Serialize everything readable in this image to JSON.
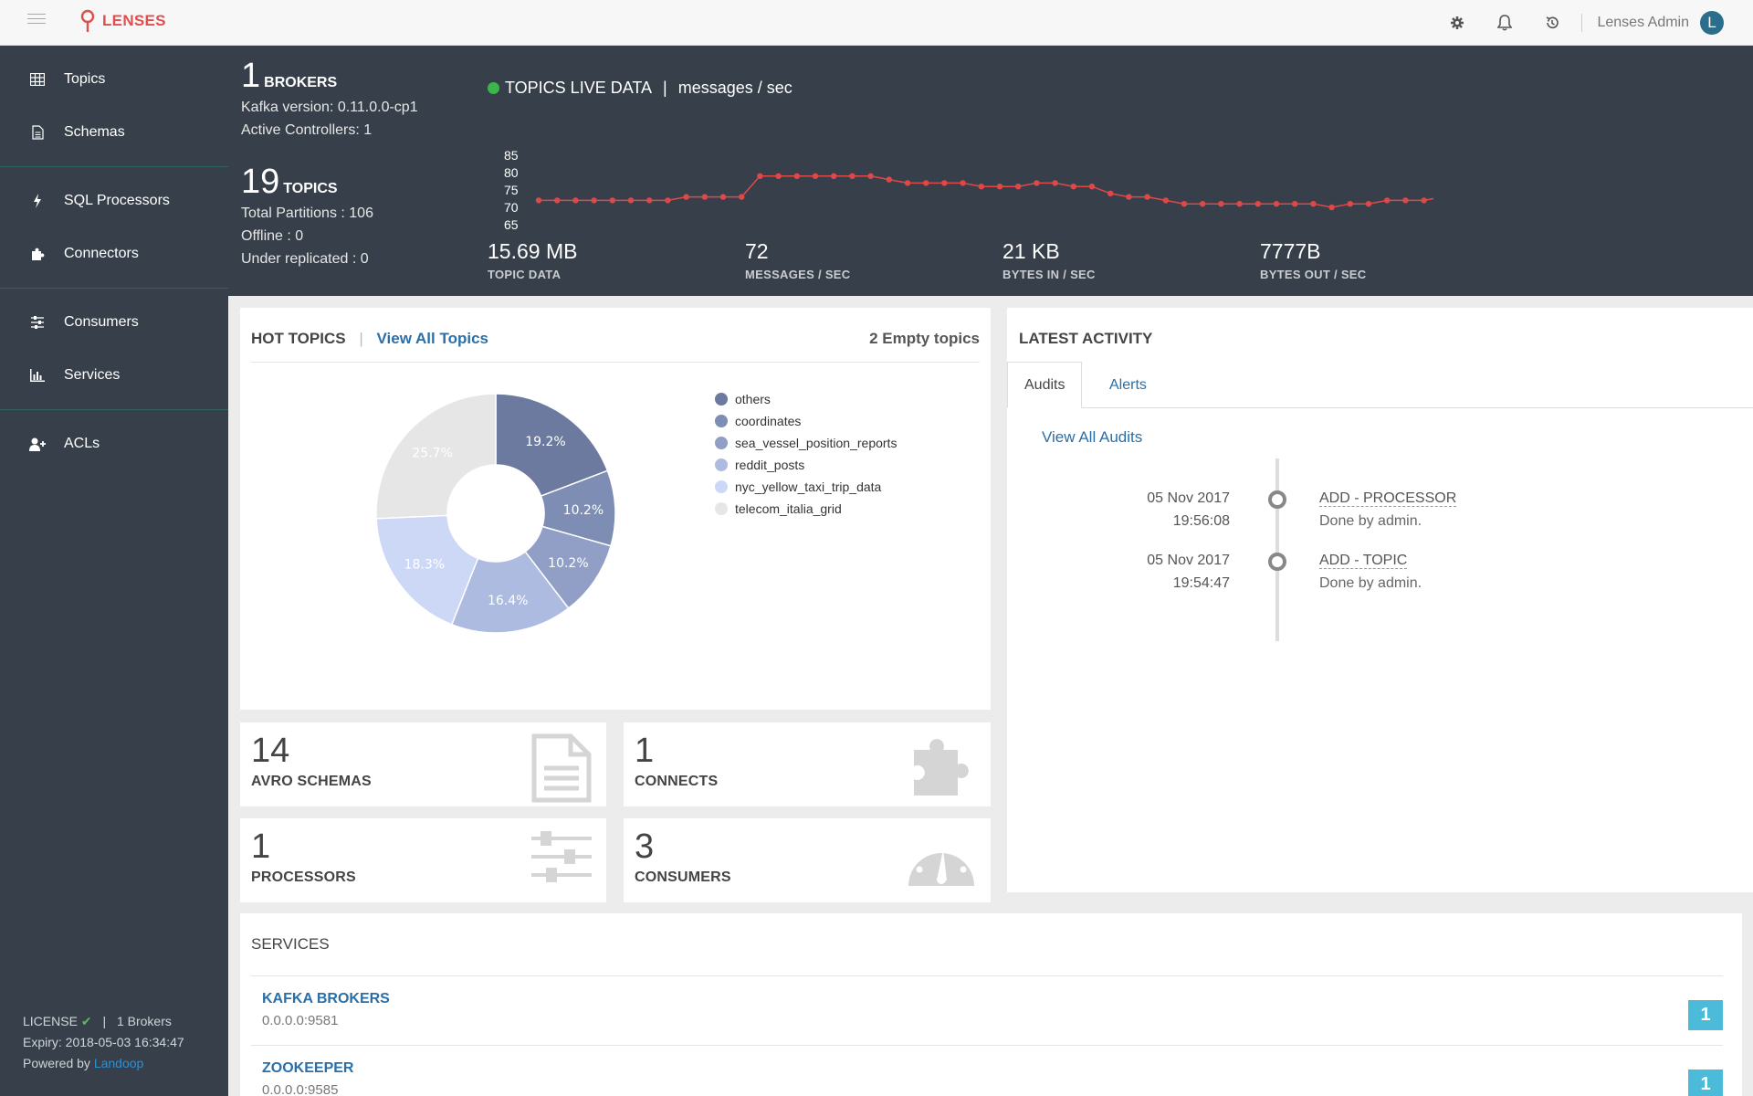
{
  "app": {
    "name": "LENSES"
  },
  "topbar": {
    "user": "Lenses Admin",
    "avatar_letter": "L"
  },
  "sidebar": {
    "groups": [
      [
        {
          "label": "Topics",
          "icon": "table-icon"
        },
        {
          "label": "Schemas",
          "icon": "document-icon"
        }
      ],
      [
        {
          "label": "SQL Processors",
          "icon": "bolt-icon"
        },
        {
          "label": "Connectors",
          "icon": "puzzle-icon"
        }
      ],
      [
        {
          "label": "Consumers",
          "icon": "sliders-icon"
        },
        {
          "label": "Services",
          "icon": "bar-chart-icon"
        }
      ],
      [
        {
          "label": "ACLs",
          "icon": "add-user-icon"
        }
      ]
    ],
    "footer": {
      "license": "LICENSE",
      "brokers": "1 Brokers",
      "expiry": "Expiry: 2018-05-03 16:34:47",
      "powered_by": "Powered by",
      "powered_link": "Landoop"
    }
  },
  "stats": {
    "brokers_count": "1",
    "brokers_label": "BROKERS",
    "kafka_version": "Kafka version: 0.11.0.0-cp1",
    "active_controllers": "Active Controllers: 1",
    "topics_count": "19",
    "topics_label": "TOPICS",
    "total_partitions": "Total Partitions : 106",
    "offline": "Offline : 0",
    "under_replicated": "Under replicated : 0",
    "live_title": "TOPICS LIVE DATA",
    "live_unit": "messages / sec",
    "metrics": [
      {
        "value": "15.69 MB",
        "label": "TOPIC DATA"
      },
      {
        "value": "72",
        "label": "MESSAGES / SEC"
      },
      {
        "value": "21 KB",
        "label": "BYTES IN / SEC"
      },
      {
        "value": "7777B",
        "label": "BYTES OUT / SEC"
      }
    ]
  },
  "chart_data": [
    {
      "type": "line",
      "title": "",
      "xlabel": "",
      "ylabel": "",
      "ylim": [
        65,
        85
      ],
      "yticks": [
        "85",
        "80",
        "75",
        "70",
        "65"
      ],
      "grid": false,
      "line_color": "#e04848",
      "series": [
        {
          "values": [
            72,
            72,
            72,
            72,
            72,
            72,
            72,
            72,
            73,
            73,
            73,
            73,
            79,
            79,
            79,
            79,
            79,
            79,
            79,
            78,
            77,
            77,
            77,
            77,
            76,
            76,
            76,
            77,
            77,
            76,
            76,
            74,
            73,
            73,
            72,
            71,
            71,
            71,
            71,
            71,
            71,
            71,
            71,
            70,
            71,
            71,
            72,
            72,
            72,
            73
          ]
        }
      ]
    },
    {
      "type": "pie",
      "title": "",
      "donut": true,
      "slices": [
        {
          "label": "others",
          "value": 19.2,
          "text": "19.2%",
          "color": "#6b7a9e"
        },
        {
          "label": "coordinates",
          "value": 10.2,
          "text": "10.2%",
          "color": "#7e8db4"
        },
        {
          "label": "sea_vessel_position_reports",
          "value": 10.2,
          "text": "10.2%",
          "color": "#919fc6"
        },
        {
          "label": "reddit_posts",
          "value": 16.4,
          "text": "16.4%",
          "color": "#aebbe0"
        },
        {
          "label": "nyc_yellow_taxi_trip_data",
          "value": 18.3,
          "text": "18.3%",
          "color": "#cdd8f6"
        },
        {
          "label": "telecom_italia_grid",
          "value": 25.7,
          "text": "25.7%",
          "color": "#e6e6e6"
        }
      ]
    }
  ],
  "hot_topics": {
    "title": "HOT TOPICS",
    "view_all": "View All Topics",
    "empty": "2 Empty topics"
  },
  "tiles": [
    {
      "value": "14",
      "label": "AVRO SCHEMAS",
      "icon": "document-icon"
    },
    {
      "value": "1",
      "label": "CONNECTS",
      "icon": "puzzle-icon"
    },
    {
      "value": "1",
      "label": "PROCESSORS",
      "icon": "sliders-icon"
    },
    {
      "value": "3",
      "label": "CONSUMERS",
      "icon": "dashboard-icon"
    }
  ],
  "activity": {
    "title": "LATEST ACTIVITY",
    "tabs": [
      "Audits",
      "Alerts"
    ],
    "view_all": "View All Audits",
    "entries": [
      {
        "date": "05 Nov 2017",
        "time": "19:56:08",
        "action": "ADD - PROCESSOR",
        "by": "Done by admin."
      },
      {
        "date": "05 Nov 2017",
        "time": "19:54:47",
        "action": "ADD - TOPIC",
        "by": "Done by admin."
      }
    ]
  },
  "services": {
    "title": "SERVICES",
    "items": [
      {
        "name": "KAFKA BROKERS",
        "address": "0.0.0.0:9581",
        "count": "1"
      },
      {
        "name": "ZOOKEEPER",
        "address": "0.0.0.0:9585",
        "count": "1"
      }
    ]
  },
  "colors": {
    "accent": "#2a6fa8",
    "brand": "#e04e4e",
    "sidebar": "#37404a",
    "live": "#3cb54a",
    "badge": "#4bbbd9"
  }
}
